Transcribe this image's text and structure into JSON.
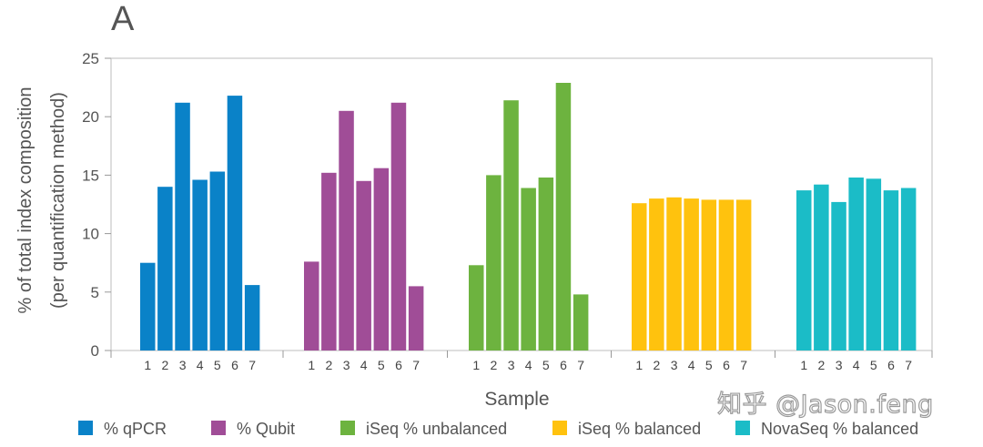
{
  "panel_label": "A",
  "watermark": "知乎 @Jason.feng",
  "chart_data": {
    "type": "bar",
    "title": "",
    "xlabel": "Sample",
    "ylabel_lines": [
      "% of total index composition",
      "(per quantification method)"
    ],
    "ylim": [
      0,
      25
    ],
    "yticks": [
      0,
      5,
      10,
      15,
      20,
      25
    ],
    "categories": [
      "1",
      "2",
      "3",
      "4",
      "5",
      "6",
      "7"
    ],
    "grid": false,
    "legend_position": "bottom",
    "series": [
      {
        "name": "% qPCR",
        "color": "#0a82c8",
        "values": [
          7.5,
          14.0,
          21.2,
          14.6,
          15.3,
          21.8,
          5.6
        ]
      },
      {
        "name": "% Qubit",
        "color": "#a04d97",
        "values": [
          7.6,
          15.2,
          20.5,
          14.5,
          15.6,
          21.2,
          5.5
        ]
      },
      {
        "name": "iSeq % unbalanced",
        "color": "#6db33f",
        "values": [
          7.3,
          15.0,
          21.4,
          13.9,
          14.8,
          22.9,
          4.8
        ]
      },
      {
        "name": "iSeq % balanced",
        "color": "#ffc20e",
        "values": [
          12.6,
          13.0,
          13.1,
          13.0,
          12.9,
          12.9,
          12.9
        ]
      },
      {
        "name": "NovaSeq % balanced",
        "color": "#1bbcc7",
        "values": [
          13.7,
          14.2,
          12.7,
          14.8,
          14.7,
          13.7,
          13.9
        ]
      }
    ]
  }
}
